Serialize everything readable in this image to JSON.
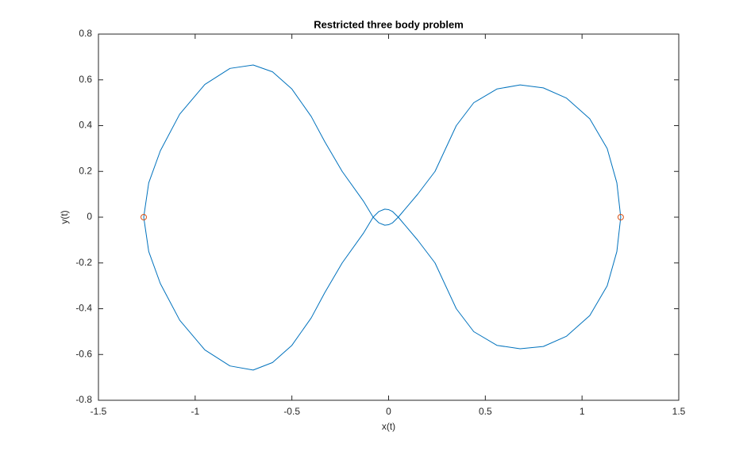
{
  "chart_data": {
    "type": "line",
    "title": "Restricted three body problem",
    "xlabel": "x(t)",
    "ylabel": "y(t)",
    "xlim": [
      -1.5,
      1.5
    ],
    "xticks": [
      -1.5,
      -1,
      -0.5,
      0,
      0.5,
      1,
      1.5
    ],
    "ylim": [
      -0.8,
      0.8
    ],
    "yticks": [
      -0.8,
      -0.6,
      -0.4,
      -0.2,
      0,
      0.2,
      0.4,
      0.6,
      0.8
    ],
    "grid": false,
    "box": true,
    "series": [
      {
        "color": "#0072bd",
        "x": [
          1.2,
          1.18,
          1.13,
          1.04,
          0.92,
          0.8,
          0.68,
          0.56,
          0.44,
          0.35,
          0.24,
          0.15,
          0.09,
          0.05,
          0.02,
          0.0,
          -0.02,
          -0.05,
          -0.08,
          -0.13,
          -0.24,
          -0.33,
          -0.4,
          -0.5,
          -0.6,
          -0.7,
          -0.82,
          -0.95,
          -1.08,
          -1.18,
          -1.24,
          -1.266,
          -1.24,
          -1.18,
          -1.08,
          -0.95,
          -0.82,
          -0.7,
          -0.6,
          -0.5,
          -0.4,
          -0.33,
          -0.24,
          -0.13,
          -0.08,
          -0.05,
          -0.02,
          0.0,
          0.02,
          0.05,
          0.09,
          0.15,
          0.24,
          0.35,
          0.44,
          0.56,
          0.68,
          0.8,
          0.92,
          1.04,
          1.13,
          1.18,
          1.2
        ],
        "values": [
          0,
          0.15,
          0.3,
          0.43,
          0.52,
          0.565,
          0.578,
          0.56,
          0.5,
          0.4,
          0.2,
          0.1,
          0.04,
          0.0,
          -0.025,
          -0.033,
          -0.035,
          -0.025,
          0.0,
          0.07,
          0.2,
          0.33,
          0.44,
          0.56,
          0.635,
          0.665,
          0.65,
          0.58,
          0.45,
          0.29,
          0.15,
          0,
          -0.15,
          -0.29,
          -0.45,
          -0.58,
          -0.65,
          -0.668,
          -0.635,
          -0.56,
          -0.44,
          -0.33,
          -0.2,
          -0.07,
          0.0,
          0.025,
          0.035,
          0.033,
          0.025,
          0.0,
          -0.04,
          -0.1,
          -0.2,
          -0.4,
          -0.5,
          -0.56,
          -0.575,
          -0.565,
          -0.52,
          -0.43,
          -0.3,
          -0.15,
          0
        ]
      },
      {
        "color": "#d95319",
        "marker": "o",
        "x": [
          -1.266,
          1.2
        ],
        "values": [
          0,
          0
        ]
      }
    ]
  }
}
